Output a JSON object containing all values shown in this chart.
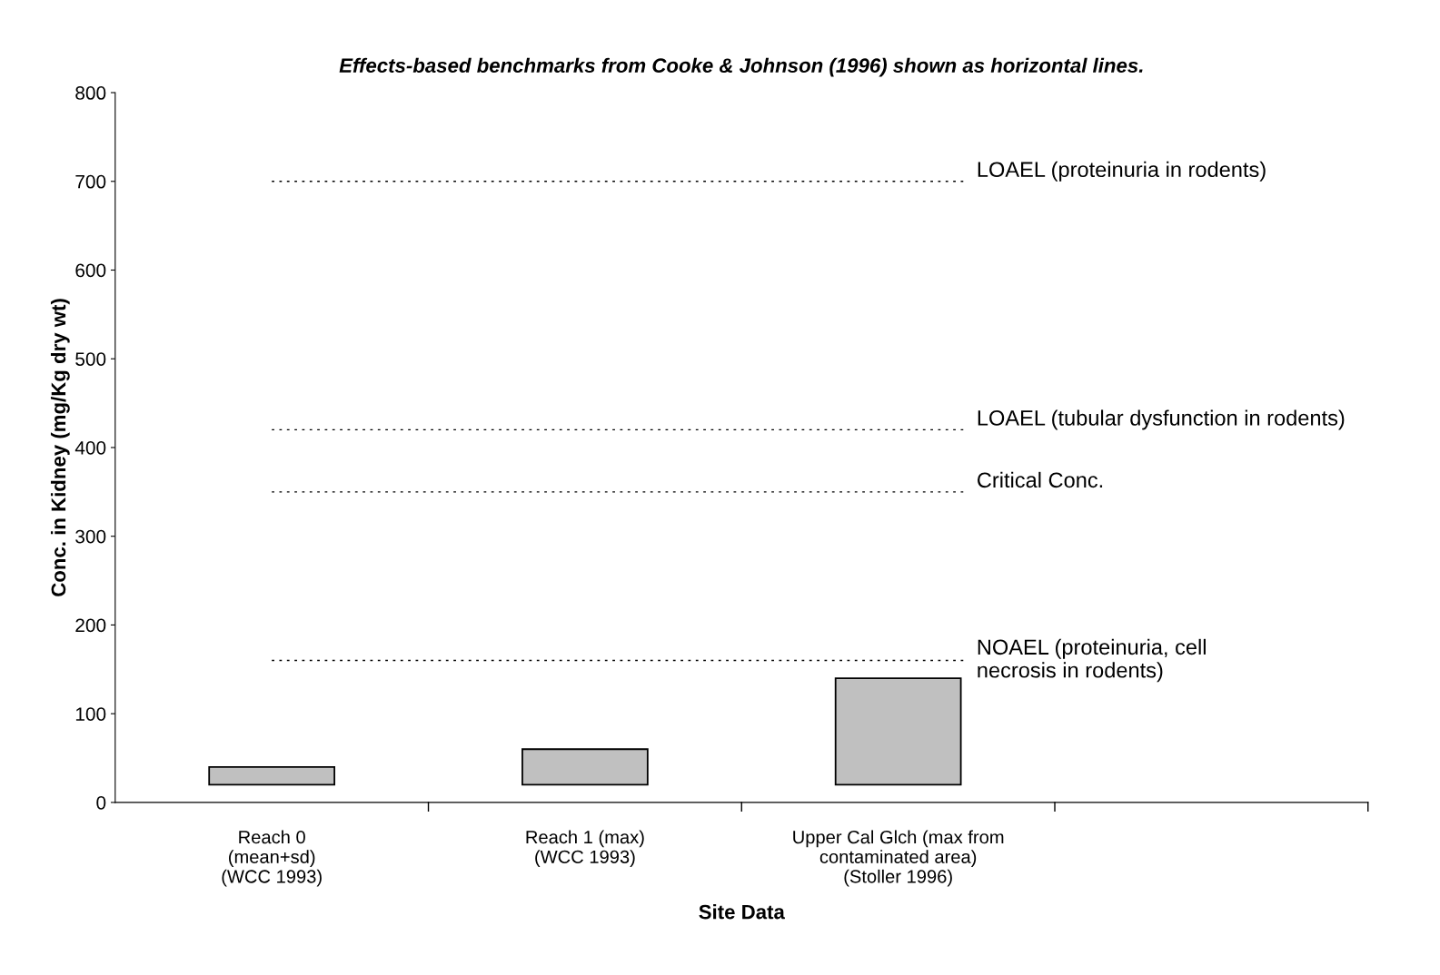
{
  "chart_data": {
    "type": "bar",
    "title": "Effects-based benchmarks from Cooke & Johnson (1996) shown as horizontal lines.",
    "xlabel": "Site Data",
    "ylabel": "Conc. in Kidney (mg/Kg dry wt)",
    "categories": [
      "Reach 0\n(mean+sd)\n(WCC 1993)",
      "Reach 1 (max)\n(WCC 1993)",
      "Upper Cal Glch (max from\ncontaminated area)\n(Stoller 1996)",
      null
    ],
    "values": [
      20,
      40,
      120,
      null
    ],
    "base": [
      20,
      20,
      20,
      null
    ],
    "color": "#c0c0c0",
    "ylim": [
      0,
      800
    ],
    "yticks": [
      0,
      100,
      200,
      300,
      400,
      500,
      600,
      700,
      800
    ],
    "ref_lines": [
      {
        "axis": "y",
        "value": 700,
        "label": "LOAEL (proteinuria in rodents)",
        "line_style": "dotted",
        "color": "#000000"
      },
      {
        "axis": "y",
        "value": 420,
        "label": "LOAEL (tubular dysfunction in rodents)",
        "line_style": "dotted",
        "color": "#000000"
      },
      {
        "axis": "y",
        "value": 350,
        "label": "Critical Conc.",
        "line_style": "dotted",
        "color": "#000000"
      },
      {
        "axis": "y",
        "value": 160,
        "label": "NOAEL (proteinuria, cell\nnecrosis in rodents)",
        "line_style": "dotted",
        "color": "#000000"
      }
    ],
    "grid": false,
    "legend": false
  }
}
